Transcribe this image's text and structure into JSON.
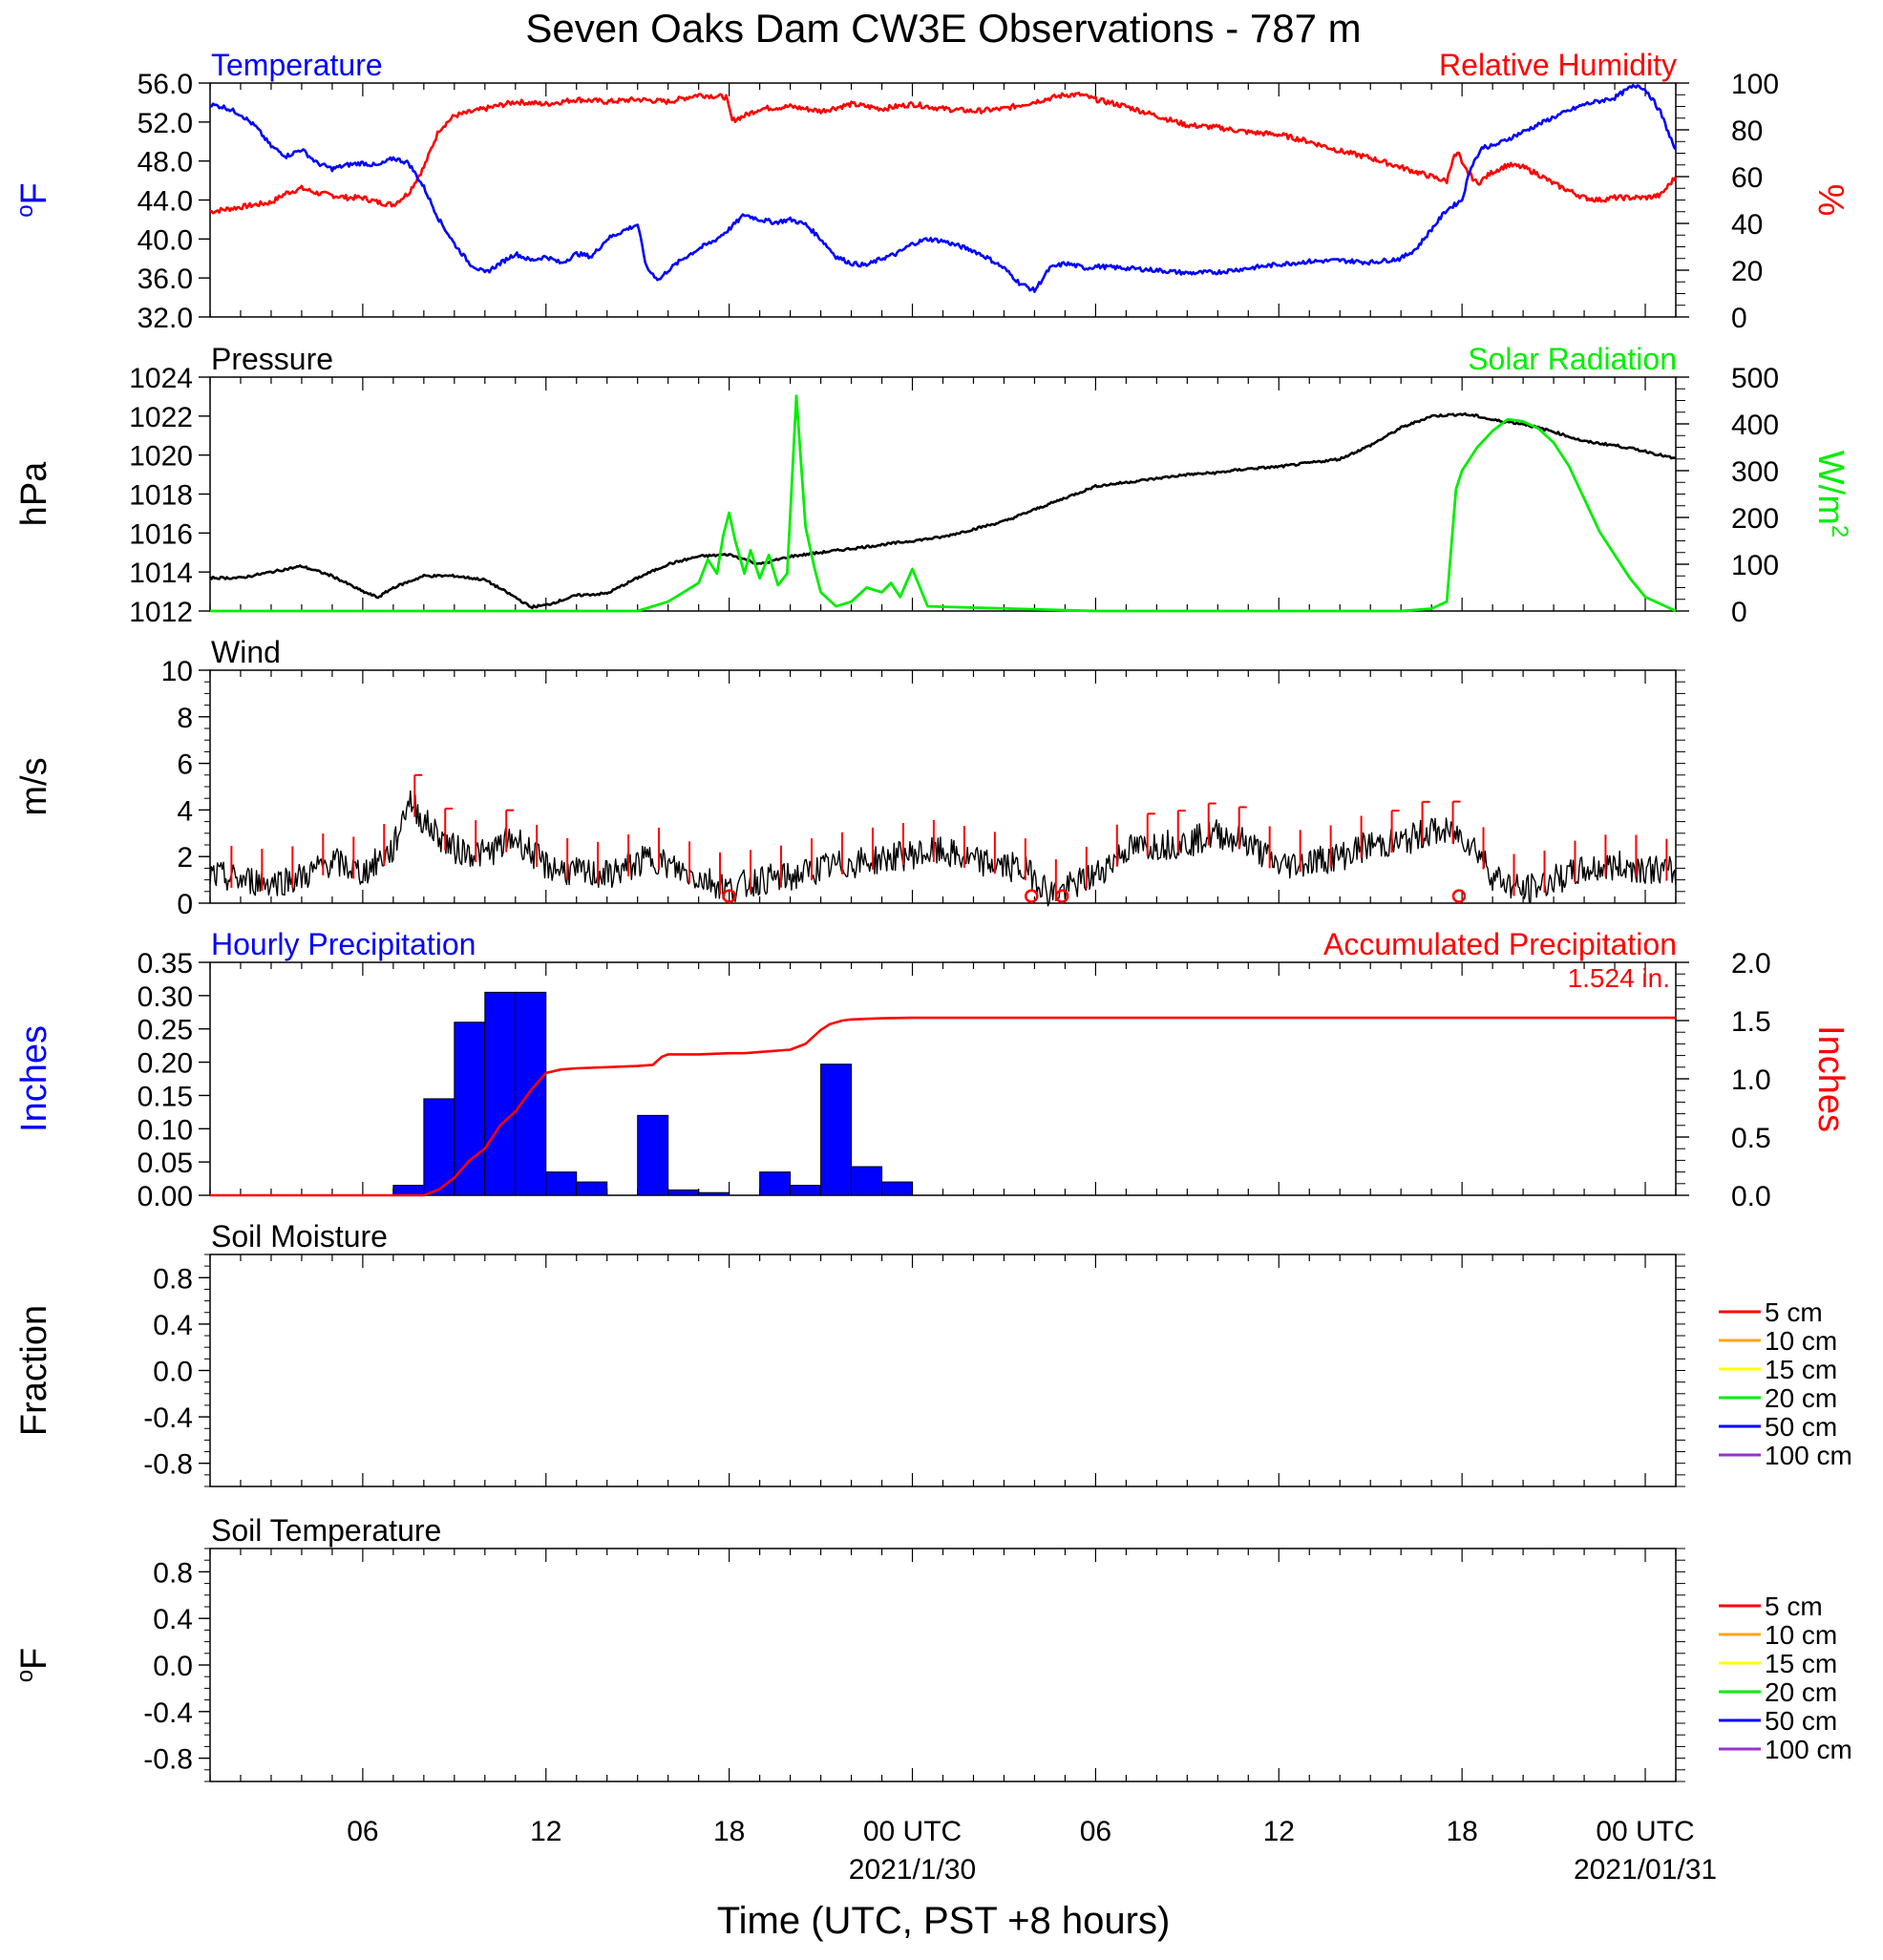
{
  "title": "Seven Oaks Dam CW3E Observations - 787 m",
  "x_axis": {
    "label": "Time (UTC, PST +8 hours)",
    "start": "2021-01-29 01:00 UTC",
    "end": "2021-01-31 01:00 UTC",
    "tick_labels": [
      {
        "hours": 6,
        "text": "06"
      },
      {
        "hours": 12,
        "text": "12"
      },
      {
        "hours": 18,
        "text": "18"
      },
      {
        "hours": 24,
        "text": "00 UTC",
        "date": "2021/1/30"
      },
      {
        "hours": 30,
        "text": "06"
      },
      {
        "hours": 36,
        "text": "12"
      },
      {
        "hours": 42,
        "text": "18"
      },
      {
        "hours": 48,
        "text": "00 UTC",
        "date": "2021/01/31"
      }
    ]
  },
  "chart_data": [
    {
      "type": "line",
      "panel": "temperature-humidity",
      "left_title": "Temperature",
      "right_title": "Relative Humidity",
      "left_unit": "oF",
      "right_unit": "%",
      "left_ylim": [
        32,
        56
      ],
      "left_ticks": [
        "32.0",
        "36.0",
        "40.0",
        "44.0",
        "48.0",
        "52.0",
        "56.0"
      ],
      "right_ylim": [
        0,
        100
      ],
      "right_ticks": [
        "0",
        "20",
        "40",
        "60",
        "80",
        "100"
      ],
      "colors": {
        "left": "#0000ff",
        "right": "#ff0000"
      },
      "series": [
        {
          "name": "Temperature",
          "axis": "left",
          "x": [
            1,
            1.5,
            2,
            2.5,
            3,
            3.5,
            4,
            4.5,
            5,
            5.5,
            6,
            6.5,
            7,
            7.5,
            8,
            8.5,
            9,
            9.5,
            10,
            10.5,
            11,
            11.5,
            12,
            12.5,
            13,
            13.5,
            14,
            14.5,
            15,
            15.3,
            15.7,
            16,
            16.5,
            17,
            17.5,
            18,
            18.5,
            19,
            19.5,
            20,
            20.5,
            21,
            21.5,
            22,
            22.5,
            23,
            23.5,
            24,
            24.5,
            25,
            25.5,
            26,
            26.5,
            27,
            27.5,
            28,
            28.5,
            29,
            29.3,
            29.7,
            30,
            31,
            32,
            33,
            34,
            35,
            36,
            37,
            38,
            39,
            40,
            40.5,
            41,
            41.5,
            42,
            42.3,
            42.7,
            43,
            44,
            45,
            46,
            47,
            47.5,
            47.8,
            48.1,
            48.5,
            49
          ],
          "values": [
            53.8,
            53.5,
            52.8,
            51.5,
            49.5,
            48.5,
            49.2,
            47.8,
            47.2,
            47.6,
            47.8,
            47.5,
            48.3,
            47.8,
            45.3,
            42.0,
            39.5,
            37.5,
            36.5,
            37.5,
            38.5,
            37.8,
            38.2,
            37.5,
            38.5,
            38.2,
            40.0,
            40.8,
            41.5,
            37.0,
            35.8,
            36.8,
            38.0,
            39.0,
            39.8,
            41.0,
            42.5,
            42.0,
            41.7,
            42.0,
            41.5,
            40.0,
            38.2,
            37.5,
            37.3,
            38.0,
            38.5,
            39.5,
            40.0,
            39.8,
            39.3,
            38.8,
            38.0,
            37.0,
            35.5,
            34.7,
            37.0,
            37.5,
            37.3,
            37.0,
            37.2,
            37.0,
            36.8,
            36.5,
            36.6,
            37.0,
            37.4,
            37.7,
            37.8,
            37.6,
            38.0,
            39.0,
            41.0,
            43.0,
            44.0,
            47.5,
            49.5,
            49.5,
            51.0,
            52.5,
            53.8,
            54.5,
            55.5,
            55.8,
            55.0,
            53.0,
            49.0
          ]
        },
        {
          "name": "Relative Humidity",
          "axis": "right",
          "x": [
            1,
            1.5,
            2,
            2.5,
            3,
            3.5,
            4,
            4.5,
            5,
            5.5,
            6,
            6.5,
            7,
            7.5,
            8,
            8.5,
            9,
            10,
            11,
            12,
            13,
            14,
            15,
            16,
            17,
            17.9,
            18.1,
            18.5,
            19,
            20,
            21,
            22,
            23,
            24,
            25,
            26,
            27,
            28,
            29,
            29.5,
            30,
            31,
            32,
            33,
            34,
            35,
            36,
            37,
            38,
            39,
            40,
            41,
            41.5,
            41.7,
            41.9,
            42,
            42.5,
            43,
            43.5,
            44,
            44.5,
            45,
            45.5,
            46,
            46.5,
            47,
            47.5,
            48,
            48.5,
            49
          ],
          "values": [
            45,
            46,
            47,
            48,
            49,
            53,
            55,
            53,
            52,
            51,
            51,
            49,
            48,
            53,
            64,
            80,
            86,
            89,
            92,
            91,
            93,
            92,
            93,
            92,
            95,
            94,
            84,
            86,
            89,
            90,
            88,
            91,
            89,
            91,
            89,
            88,
            89,
            92,
            95,
            95,
            93,
            90,
            86,
            82,
            81,
            79,
            78,
            75,
            71,
            68,
            64,
            60,
            58,
            68,
            70,
            65,
            57,
            62,
            65,
            64,
            61,
            57,
            54,
            51,
            50,
            51,
            51,
            51,
            52,
            60
          ]
        }
      ]
    },
    {
      "type": "line",
      "panel": "pressure-solar",
      "left_title": "Pressure",
      "right_title": "Solar Radiation",
      "left_unit": "hPa",
      "right_unit": "W/m2",
      "left_ylim": [
        1012,
        1024
      ],
      "left_ticks": [
        "1012",
        "1014",
        "1016",
        "1018",
        "1020",
        "1022",
        "1024"
      ],
      "right_ylim": [
        0,
        500
      ],
      "right_ticks": [
        "0",
        "100",
        "200",
        "300",
        "400",
        "500"
      ],
      "colors": {
        "left": "#000000",
        "right": "#00ee00"
      },
      "series": [
        {
          "name": "Pressure",
          "axis": "left",
          "x": [
            1,
            2,
            3,
            4,
            5,
            6,
            6.5,
            7,
            8,
            9,
            10,
            11,
            11.5,
            12,
            13,
            14,
            15,
            16,
            17,
            18,
            19,
            20,
            21,
            22,
            23,
            24,
            25,
            26,
            27,
            28,
            29,
            30,
            31,
            32,
            33,
            34,
            35,
            36,
            37,
            38,
            39,
            40,
            41,
            42,
            42.5,
            43,
            44,
            45,
            46,
            47,
            48,
            49
          ],
          "values": [
            1013.7,
            1013.7,
            1014.0,
            1014.3,
            1013.8,
            1013.0,
            1012.7,
            1013.2,
            1013.8,
            1013.8,
            1013.6,
            1012.7,
            1012.2,
            1012.3,
            1012.8,
            1012.9,
            1013.7,
            1014.4,
            1014.8,
            1014.9,
            1014.4,
            1014.8,
            1015.0,
            1015.2,
            1015.4,
            1015.6,
            1015.8,
            1016.2,
            1016.6,
            1017.2,
            1017.8,
            1018.4,
            1018.6,
            1018.8,
            1019.0,
            1019.1,
            1019.3,
            1019.4,
            1019.6,
            1019.8,
            1020.5,
            1021.4,
            1022.0,
            1022.1,
            1022.0,
            1021.8,
            1021.6,
            1021.2,
            1020.7,
            1020.5,
            1020.2,
            1019.8
          ]
        },
        {
          "name": "Solar Radiation",
          "axis": "right",
          "x": [
            1,
            15,
            16,
            16.5,
            17,
            17.3,
            17.6,
            17.8,
            18,
            18.2,
            18.5,
            18.7,
            19,
            19.3,
            19.6,
            19.9,
            20.2,
            20.5,
            20.8,
            21,
            21.5,
            22,
            22.5,
            23,
            23.3,
            23.6,
            24,
            24.5,
            30,
            40,
            41,
            41.5,
            41.8,
            42,
            42.5,
            43,
            43.5,
            44,
            44.5,
            45,
            45.5,
            46,
            46.5,
            47,
            47.5,
            48,
            48.5,
            49
          ],
          "values": [
            0,
            0,
            20,
            40,
            60,
            110,
            80,
            160,
            210,
            150,
            80,
            130,
            70,
            120,
            55,
            80,
            460,
            180,
            90,
            40,
            10,
            20,
            50,
            40,
            60,
            30,
            90,
            10,
            0,
            0,
            5,
            20,
            260,
            300,
            350,
            385,
            410,
            405,
            390,
            360,
            310,
            240,
            170,
            120,
            70,
            30,
            15,
            0
          ]
        }
      ]
    },
    {
      "type": "line",
      "panel": "wind",
      "left_title": "Wind",
      "left_unit": "m/s",
      "left_ylim": [
        0,
        10
      ],
      "left_ticks": [
        "0",
        "2",
        "4",
        "6",
        "8",
        "10"
      ],
      "colors": {
        "speed": "#000000",
        "barbs": "#ff0000"
      },
      "series": [
        {
          "name": "Wind",
          "x": [
            1,
            2,
            3,
            4,
            5,
            6,
            7,
            7.5,
            8,
            9,
            10,
            11,
            12,
            13,
            14,
            15,
            15.5,
            16,
            17,
            17.5,
            18,
            19,
            20,
            21,
            22,
            23,
            24,
            25,
            26,
            27,
            27.5,
            28,
            28.5,
            29,
            30,
            31,
            32,
            33,
            34,
            35,
            36,
            37,
            38,
            39,
            40,
            41,
            42,
            42.5,
            43,
            44,
            45,
            46,
            47,
            48,
            49
          ],
          "values": [
            1.2,
            1.0,
            0.9,
            1.1,
            1.8,
            1.3,
            2.3,
            4.5,
            3.5,
            2.3,
            2.1,
            2.8,
            1.6,
            1.3,
            1.2,
            1.7,
            2.0,
            1.6,
            1.1,
            0.9,
            0.6,
            1.0,
            1.1,
            1.5,
            1.7,
            1.9,
            2.1,
            2.2,
            1.8,
            1.6,
            1.5,
            1.2,
            0.4,
            0.6,
            1.2,
            2.3,
            2.5,
            2.6,
            3.0,
            2.6,
            1.6,
            1.8,
            2.0,
            2.5,
            2.6,
            3.1,
            2.9,
            2.3,
            1.2,
            0.5,
            1.0,
            1.4,
            1.6,
            1.5,
            1.3
          ]
        }
      ],
      "calm_markers_hours": [
        18.0,
        27.9,
        28.9,
        41.9
      ]
    },
    {
      "type": "bar",
      "panel": "precipitation",
      "left_title": "Hourly Precipitation",
      "right_title": "Accumulated Precipitation",
      "total_label": "1.524 in.",
      "left_unit": "Inches",
      "right_unit": "Inches",
      "left_ylim": [
        0,
        0.35
      ],
      "left_ticks": [
        "0.00",
        "0.05",
        "0.10",
        "0.15",
        "0.20",
        "0.25",
        "0.30",
        "0.35"
      ],
      "right_ylim": [
        0,
        2.0
      ],
      "right_ticks": [
        "0.0",
        "0.5",
        "1.0",
        "1.5",
        "2.0"
      ],
      "colors": {
        "bars": "#0000ff",
        "line": "#ff0000"
      },
      "bars": {
        "hours": [
          7,
          8,
          9,
          10,
          11,
          12,
          13,
          15,
          16,
          17,
          19,
          20,
          21,
          22,
          23
        ],
        "values": [
          0.015,
          0.145,
          0.26,
          0.305,
          0.305,
          0.035,
          0.02,
          0.12,
          0.008,
          0.004,
          0.035,
          0.015,
          0.197,
          0.043,
          0.02
        ]
      },
      "series": [
        {
          "name": "Accumulated Precipitation",
          "x": [
            1,
            7,
            8,
            8.5,
            9,
            9.5,
            10,
            10.5,
            11,
            11.5,
            12,
            12.5,
            13,
            14,
            15,
            15.5,
            15.8,
            16,
            17,
            18,
            18.5,
            19,
            20,
            20.5,
            21,
            21.3,
            21.7,
            22,
            23,
            24,
            49
          ],
          "values": [
            0,
            0,
            0,
            0.05,
            0.15,
            0.3,
            0.4,
            0.6,
            0.72,
            0.9,
            1.05,
            1.08,
            1.09,
            1.1,
            1.11,
            1.12,
            1.19,
            1.21,
            1.21,
            1.22,
            1.22,
            1.23,
            1.25,
            1.3,
            1.42,
            1.47,
            1.5,
            1.51,
            1.52,
            1.524,
            1.524
          ]
        }
      ]
    },
    {
      "type": "line",
      "panel": "soil-moisture",
      "left_title": "Soil Moisture",
      "left_unit": "Fraction",
      "left_ylim": [
        -1.0,
        1.0
      ],
      "left_ticks": [
        "-0.8",
        "-0.4",
        "0.0",
        "0.4",
        "0.8"
      ],
      "legend": [
        {
          "label": "5 cm",
          "color": "#ff0000"
        },
        {
          "label": "10 cm",
          "color": "#ffa500"
        },
        {
          "label": "15 cm",
          "color": "#ffff00"
        },
        {
          "label": "20 cm",
          "color": "#00ee00"
        },
        {
          "label": "50 cm",
          "color": "#0000ff"
        },
        {
          "label": "100 cm",
          "color": "#9932cc"
        }
      ],
      "series": []
    },
    {
      "type": "line",
      "panel": "soil-temperature",
      "left_title": "Soil Temperature",
      "left_unit": "oF",
      "left_ylim": [
        -1.0,
        1.0
      ],
      "left_ticks": [
        "-0.8",
        "-0.4",
        "0.0",
        "0.4",
        "0.8"
      ],
      "legend": [
        {
          "label": "5 cm",
          "color": "#ff0000"
        },
        {
          "label": "10 cm",
          "color": "#ffa500"
        },
        {
          "label": "15 cm",
          "color": "#ffff00"
        },
        {
          "label": "20 cm",
          "color": "#00ee00"
        },
        {
          "label": "50 cm",
          "color": "#0000ff"
        },
        {
          "label": "100 cm",
          "color": "#9932cc"
        }
      ],
      "series": []
    }
  ]
}
